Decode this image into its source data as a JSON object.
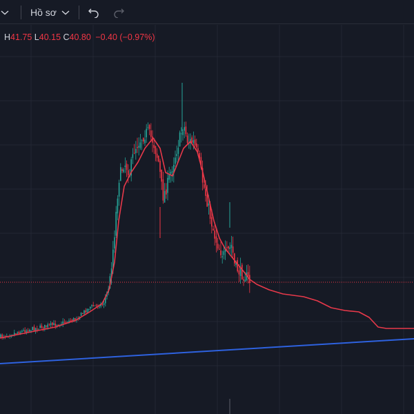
{
  "toolbar": {
    "profile_label": "Hồ sơ",
    "icons": [
      "chevron-down-icon",
      "chevron-down-icon",
      "undo-icon",
      "redo-icon"
    ]
  },
  "legend": {
    "h_label": "H",
    "h_value": "41.75",
    "l_label": "L",
    "l_value": "40.15",
    "c_label": "C",
    "c_value": "40.80",
    "change": "−0.40 (−0.97%)"
  },
  "colors": {
    "background": "#161a25",
    "grid": "#232733",
    "up_candle": "#26a69a",
    "down_candle": "#f23645",
    "moving_average": "#e8394a",
    "trendline": "#2e62e0",
    "price_line": "#f23645"
  },
  "chart_data": {
    "type": "candlestick",
    "last_close": 40.8,
    "last_change": -0.4,
    "last_change_pct": -0.97,
    "series": [
      {
        "name": "",
        "kind": "moving-average"
      },
      {
        "name": "",
        "kind": "trendline"
      }
    ],
    "grid": true
  }
}
